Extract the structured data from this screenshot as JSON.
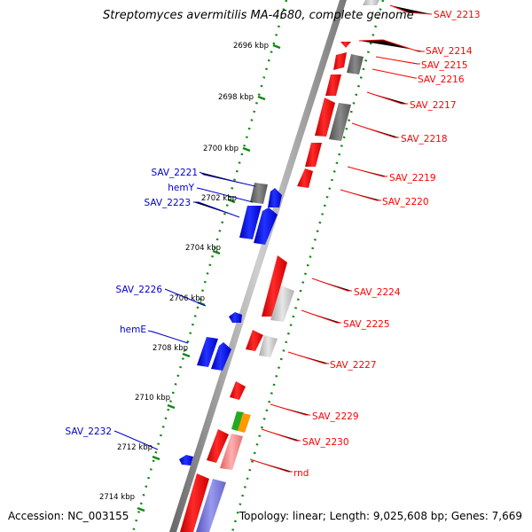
{
  "title": "Streptomyces avermitilis MA-4680, complete genome",
  "footer": {
    "accession": "Accession: NC_003155",
    "topology": "Topology: linear; Length: 9,025,608 bp; Genes: 7,669"
  },
  "colors": {
    "plus_strand": "#ff0000",
    "minus_strand": "#0000ff",
    "gray": "#6e6e6e",
    "light_gray": "#c8c8c8",
    "pink": "#f08080",
    "green": "#22aa22",
    "orange": "#ff9900",
    "purple": "#7777dd",
    "backbone": "#888888",
    "tick": "#118811"
  },
  "axis_ticks": [
    "2696 kbp",
    "2698 kbp",
    "2700 kbp",
    "2702 kbp",
    "2704 kbp",
    "2706 kbp",
    "2708 kbp",
    "2710 kbp",
    "2712 kbp",
    "2714 kbp"
  ],
  "right_labels": [
    "SAV_2213",
    "SAV_2214",
    "SAV_2215",
    "SAV_2216",
    "SAV_2217",
    "SAV_2218",
    "SAV_2219",
    "SAV_2220",
    "SAV_2224",
    "SAV_2225",
    "SAV_2227",
    "SAV_2229",
    "SAV_2230",
    "rnd"
  ],
  "left_labels": [
    "SAV_2221",
    "hemY",
    "SAV_2223",
    "SAV_2226",
    "hemE",
    "SAV_2232"
  ]
}
